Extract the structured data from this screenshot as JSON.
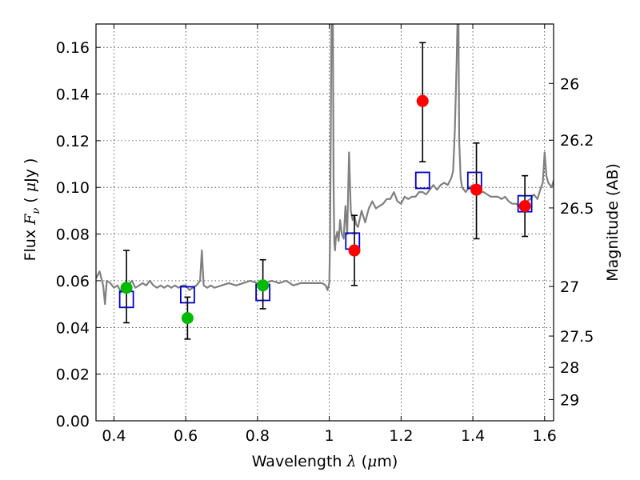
{
  "chart_data": {
    "type": "scatter",
    "title": "",
    "xlabel": {
      "prefix": "Wavelength  ",
      "lambda": "λ",
      "unit_open": " (",
      "mu": "μ",
      "unit_close": "m)"
    },
    "ylabel": {
      "prefix": "Flux  ",
      "F": "F",
      "nu": "ν",
      "mid": "  ( ",
      "mu": "μ",
      "suffix": "Jy )"
    },
    "ylabel_right": "Magnitude (AB)",
    "xlim": [
      0.35,
      1.625
    ],
    "ylim": [
      0.0,
      0.17
    ],
    "grid": true,
    "x_ticks": [
      0.4,
      0.6,
      0.8,
      1.0,
      1.2,
      1.4,
      1.6
    ],
    "x_tick_labels": [
      "0.4",
      "0.6",
      "0.8",
      "1",
      "1.2",
      "1.4",
      "1.6"
    ],
    "y_ticks": [
      0.0,
      0.02,
      0.04,
      0.06,
      0.08,
      0.1,
      0.12,
      0.14,
      0.16
    ],
    "y_tick_labels": [
      "0.00",
      "0.02",
      "0.04",
      "0.06",
      "0.08",
      "0.10",
      "0.12",
      "0.14",
      "0.16"
    ],
    "right_ticks": [
      {
        "mag": 26,
        "label": "26"
      },
      {
        "mag": 26.2,
        "label": "26.2"
      },
      {
        "mag": 26.5,
        "label": "26.5"
      },
      {
        "mag": 27,
        "label": "27"
      },
      {
        "mag": 27.5,
        "label": "27.5"
      },
      {
        "mag": 28,
        "label": "28"
      },
      {
        "mag": 29,
        "label": "29"
      }
    ],
    "spectrum": {
      "color": "#808080",
      "x": [
        0.35,
        0.36,
        0.37,
        0.375,
        0.38,
        0.39,
        0.4,
        0.41,
        0.42,
        0.43,
        0.44,
        0.45,
        0.46,
        0.47,
        0.48,
        0.49,
        0.5,
        0.51,
        0.52,
        0.53,
        0.54,
        0.55,
        0.56,
        0.57,
        0.58,
        0.59,
        0.6,
        0.61,
        0.62,
        0.63,
        0.64,
        0.645,
        0.65,
        0.66,
        0.67,
        0.68,
        0.7,
        0.72,
        0.74,
        0.76,
        0.78,
        0.8,
        0.82,
        0.84,
        0.86,
        0.88,
        0.9,
        0.92,
        0.94,
        0.96,
        0.98,
        0.99,
        0.995,
        1.0,
        1.002,
        1.004,
        1.006,
        1.008,
        1.01,
        1.012,
        1.014,
        1.016,
        1.018,
        1.022,
        1.026,
        1.03,
        1.035,
        1.04,
        1.045,
        1.05,
        1.055,
        1.06,
        1.065,
        1.07,
        1.075,
        1.08,
        1.09,
        1.1,
        1.11,
        1.12,
        1.13,
        1.14,
        1.15,
        1.16,
        1.17,
        1.18,
        1.19,
        1.2,
        1.21,
        1.22,
        1.23,
        1.24,
        1.25,
        1.26,
        1.27,
        1.28,
        1.29,
        1.3,
        1.31,
        1.32,
        1.33,
        1.34,
        1.345,
        1.35,
        1.355,
        1.357,
        1.36,
        1.362,
        1.366,
        1.37,
        1.38,
        1.39,
        1.4,
        1.41,
        1.42,
        1.43,
        1.44,
        1.45,
        1.46,
        1.47,
        1.48,
        1.49,
        1.5,
        1.51,
        1.52,
        1.53,
        1.54,
        1.55,
        1.56,
        1.565,
        1.57,
        1.58,
        1.59,
        1.595,
        1.6,
        1.605,
        1.61,
        1.62,
        1.625
      ],
      "y": [
        0.061,
        0.064,
        0.058,
        0.05,
        0.06,
        0.059,
        0.057,
        0.058,
        0.055,
        0.059,
        0.058,
        0.06,
        0.057,
        0.058,
        0.059,
        0.058,
        0.06,
        0.058,
        0.057,
        0.058,
        0.057,
        0.058,
        0.057,
        0.058,
        0.057,
        0.058,
        0.058,
        0.056,
        0.057,
        0.058,
        0.06,
        0.073,
        0.058,
        0.057,
        0.058,
        0.057,
        0.058,
        0.059,
        0.058,
        0.059,
        0.06,
        0.059,
        0.059,
        0.06,
        0.059,
        0.06,
        0.058,
        0.059,
        0.059,
        0.059,
        0.059,
        0.058,
        0.056,
        0.059,
        0.075,
        0.12,
        0.17,
        0.17,
        0.17,
        0.1,
        0.076,
        0.073,
        0.078,
        0.081,
        0.077,
        0.086,
        0.08,
        0.078,
        0.092,
        0.08,
        0.115,
        0.09,
        0.086,
        0.088,
        0.084,
        0.083,
        0.09,
        0.085,
        0.091,
        0.094,
        0.091,
        0.092,
        0.093,
        0.095,
        0.095,
        0.098,
        0.094,
        0.093,
        0.096,
        0.095,
        0.096,
        0.096,
        0.098,
        0.098,
        0.097,
        0.099,
        0.101,
        0.099,
        0.101,
        0.102,
        0.101,
        0.104,
        0.107,
        0.125,
        0.155,
        0.17,
        0.17,
        0.12,
        0.104,
        0.1,
        0.098,
        0.1,
        0.101,
        0.099,
        0.098,
        0.098,
        0.097,
        0.096,
        0.096,
        0.096,
        0.095,
        0.096,
        0.094,
        0.093,
        0.093,
        0.092,
        0.092,
        0.094,
        0.095,
        0.096,
        0.097,
        0.095,
        0.1,
        0.102,
        0.115,
        0.105,
        0.102,
        0.1,
        0.103
      ]
    },
    "model_points": {
      "color": "#0000cc",
      "x": [
        0.435,
        0.605,
        0.815,
        1.065,
        1.26,
        1.405,
        1.545
      ],
      "y": [
        0.052,
        0.054,
        0.055,
        0.077,
        0.103,
        0.103,
        0.093
      ]
    },
    "green_points": {
      "color": "#00bb00",
      "x": [
        0.435,
        0.605,
        0.815
      ],
      "y": [
        0.057,
        0.044,
        0.058
      ],
      "err_low": [
        0.042,
        0.035,
        0.048
      ],
      "err_high": [
        0.073,
        0.053,
        0.069
      ]
    },
    "red_points": {
      "color": "#ff0000",
      "x": [
        1.07,
        1.26,
        1.41,
        1.545
      ],
      "y": [
        0.073,
        0.137,
        0.099,
        0.092
      ],
      "err_low": [
        0.058,
        0.111,
        0.078,
        0.079
      ],
      "err_high": [
        0.088,
        0.162,
        0.119,
        0.105
      ]
    }
  }
}
